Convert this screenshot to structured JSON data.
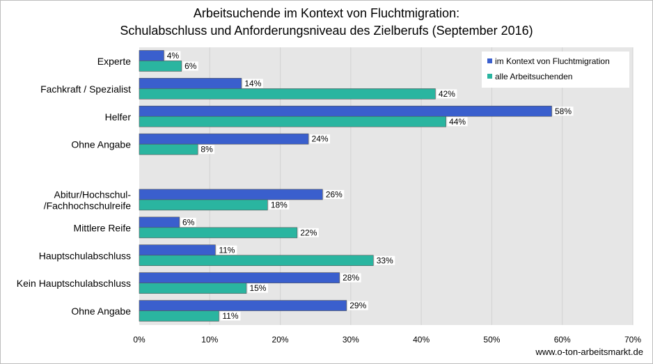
{
  "title_line1": "Arbeitsuchende im Kontext von Fluchtmigration:",
  "title_line2": "Schulabschluss und Anforderungsniveau des Zielberufs (September 2016)",
  "source": "www.o-ton-arbeitsmarkt.de",
  "colors": {
    "series1": "#3a5fcd",
    "series2": "#2ab5a0",
    "plot_bg": "#e6e6e6"
  },
  "chart_data": {
    "type": "bar",
    "orientation": "horizontal",
    "categories": [
      "Experte",
      "Fachkraft / Spezialist",
      "Helfer",
      "Ohne Angabe",
      "",
      "Abitur/Hochschul- /Fachhochschulreife",
      "Mittlere Reife",
      "Hauptschulabschluss",
      "Kein Hauptschulabschluss",
      "Ohne Angabe"
    ],
    "category_lines": [
      [
        "Experte"
      ],
      [
        "Fachkraft / Spezialist"
      ],
      [
        "Helfer"
      ],
      [
        "Ohne Angabe"
      ],
      [],
      [
        "Abitur/Hochschul-",
        "/Fachhochschulreife"
      ],
      [
        "Mittlere Reife"
      ],
      [
        "Hauptschulabschluss"
      ],
      [
        "Kein Hauptschulabschluss"
      ],
      [
        "Ohne Angabe"
      ]
    ],
    "series": [
      {
        "name": "im Kontext von Fluchtmigration",
        "values": [
          3.5,
          14.5,
          58.5,
          24,
          null,
          26,
          5.7,
          10.8,
          28.4,
          29.4
        ],
        "labels": [
          "4%",
          "14%",
          "58%",
          "24%",
          "",
          "26%",
          "6%",
          "11%",
          "28%",
          "29%"
        ]
      },
      {
        "name": "alle Arbeitsuchenden",
        "values": [
          6,
          42,
          43.5,
          8.3,
          null,
          18.2,
          22.4,
          33.2,
          15.2,
          11.3
        ],
        "labels": [
          "6%",
          "42%",
          "44%",
          "8%",
          "",
          "18%",
          "22%",
          "33%",
          "15%",
          "11%"
        ]
      }
    ],
    "xlim": [
      0,
      70
    ],
    "xticks": [
      "0%",
      "10%",
      "20%",
      "30%",
      "40%",
      "50%",
      "60%",
      "70%"
    ],
    "grid": true,
    "legend_position": "top-right"
  }
}
